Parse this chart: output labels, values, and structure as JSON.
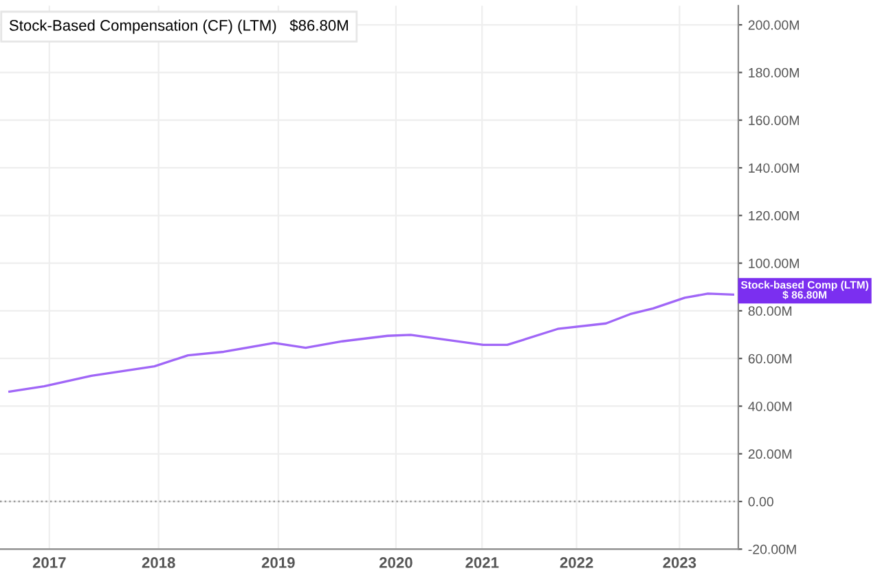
{
  "chart_data": {
    "type": "line",
    "title": "Stock-Based Compensation (CF) (LTM)   $86.80M",
    "x": [
      2016.62,
      2016.95,
      2017.4,
      2018.0,
      2018.32,
      2018.66,
      2019.14,
      2019.44,
      2019.79,
      2020.22,
      2020.44,
      2021.13,
      2021.36,
      2021.84,
      2022.3,
      2022.53,
      2022.75,
      2023.05,
      2023.27,
      2023.51
    ],
    "series": [
      {
        "color": "#a066f7",
        "values": [
          46.1,
          48.3,
          52.7,
          56.7,
          61.3,
          62.8,
          66.5,
          64.5,
          67.2,
          69.5,
          69.9,
          65.7,
          65.7,
          72.4,
          74.7,
          78.6,
          81,
          85.5,
          87.2,
          86.8
        ]
      }
    ],
    "xlim": [
      2016.53,
      2023.56
    ],
    "xticks": [
      {
        "value": 2017.0,
        "label": "2017"
      },
      {
        "value": 2018.04,
        "label": "2018"
      },
      {
        "value": 2019.18,
        "label": "2019"
      },
      {
        "value": 2020.3,
        "label": "2020"
      },
      {
        "value": 2021.12,
        "label": "2021"
      },
      {
        "value": 2022.02,
        "label": "2022"
      },
      {
        "value": 2023.0,
        "label": "2023"
      }
    ],
    "ylim": [
      -20,
      208
    ],
    "yticks": [
      {
        "value": -20,
        "label": "-20.00M"
      },
      {
        "value": 0,
        "label": "0.00"
      },
      {
        "value": 20,
        "label": "20.00M"
      },
      {
        "value": 40,
        "label": "40.00M"
      },
      {
        "value": 60,
        "label": "60.00M"
      },
      {
        "value": 80,
        "label": "80.00M"
      },
      {
        "value": 100,
        "label": "100.00M"
      },
      {
        "value": 120,
        "label": "120.00M"
      },
      {
        "value": 140,
        "label": "140.00M"
      },
      {
        "value": 160,
        "label": "160.00M"
      },
      {
        "value": 180,
        "label": "180.00M"
      },
      {
        "value": 200,
        "label": "200.00M"
      }
    ],
    "ref_lines": [
      {
        "axis": "y",
        "value": 0,
        "color": "#999999",
        "line_style": "dotted"
      }
    ],
    "annotations": [
      {
        "text": "Stock-based Comp (LTM)\n$ 86.80M",
        "x": 2023.51,
        "y": 86.8
      }
    ],
    "grid": true,
    "legend": false,
    "marker": "none",
    "line_style": "solid"
  }
}
